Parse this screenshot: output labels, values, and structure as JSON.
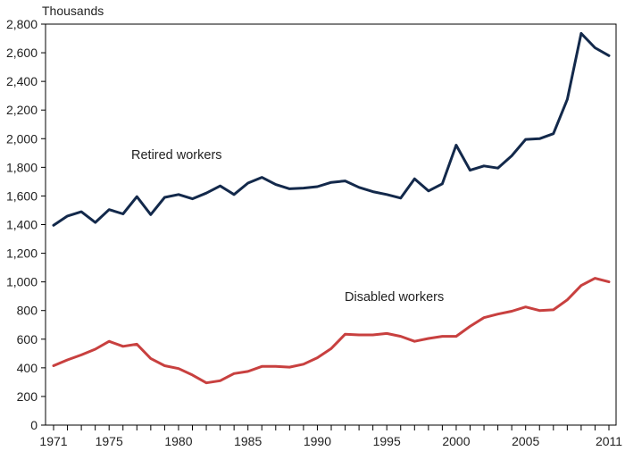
{
  "chart_data": {
    "type": "line",
    "title": "",
    "xlabel": "",
    "ylabel": "Thousands",
    "xlim": [
      1971,
      2011
    ],
    "ylim": [
      0,
      2800
    ],
    "yticks": [
      0,
      200,
      400,
      600,
      800,
      1000,
      1200,
      1400,
      1600,
      1800,
      2000,
      2200,
      2400,
      2600,
      2800
    ],
    "ytick_labels": [
      "0",
      "200",
      "400",
      "600",
      "800",
      "1,000",
      "1,200",
      "1,400",
      "1,600",
      "1,800",
      "2,000",
      "2,200",
      "2,400",
      "2,600",
      "2,800"
    ],
    "xticks": [
      1971,
      1975,
      1980,
      1985,
      1990,
      1995,
      2000,
      2005,
      2011
    ],
    "xtick_labels": [
      "1971",
      "1975",
      "1980",
      "1985",
      "1990",
      "1995",
      "2000",
      "2005",
      "2011"
    ],
    "grid": false,
    "legend": "none",
    "x": [
      1971,
      1972,
      1973,
      1974,
      1975,
      1976,
      1977,
      1978,
      1979,
      1980,
      1981,
      1982,
      1983,
      1984,
      1985,
      1986,
      1987,
      1988,
      1989,
      1990,
      1991,
      1992,
      1993,
      1994,
      1995,
      1996,
      1997,
      1998,
      1999,
      2000,
      2001,
      2002,
      2003,
      2004,
      2005,
      2006,
      2007,
      2008,
      2009,
      2010,
      2011
    ],
    "series": [
      {
        "name": "Retired workers",
        "color": "#13294b",
        "values": [
          1395,
          1460,
          1490,
          1415,
          1505,
          1475,
          1595,
          1470,
          1590,
          1610,
          1580,
          1620,
          1670,
          1610,
          1690,
          1730,
          1680,
          1650,
          1655,
          1665,
          1695,
          1705,
          1660,
          1630,
          1610,
          1585,
          1720,
          1635,
          1685,
          1955,
          1780,
          1810,
          1795,
          1880,
          1995,
          2000,
          2035,
          2275,
          2735,
          2635,
          2580
        ]
      },
      {
        "name": "Disabled workers",
        "color": "#c8403f",
        "values": [
          415,
          455,
          490,
          530,
          585,
          550,
          565,
          465,
          415,
          395,
          350,
          295,
          310,
          360,
          375,
          410,
          410,
          405,
          425,
          470,
          535,
          635,
          630,
          630,
          640,
          620,
          585,
          605,
          620,
          620,
          690,
          750,
          775,
          795,
          825,
          800,
          805,
          875,
          975,
          1025,
          1000
        ]
      }
    ]
  }
}
